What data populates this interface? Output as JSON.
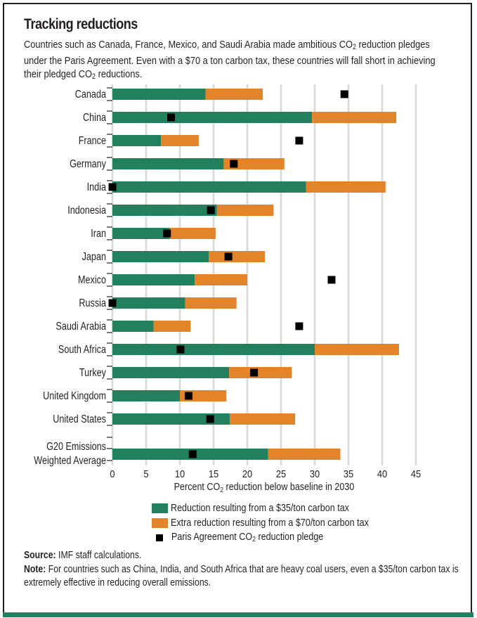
{
  "header": {
    "title": "Tracking reductions",
    "subtitle_parts": [
      "Countries such as Canada, France, Mexico, and Saudi Arabia made ambitious CO",
      "2",
      " reduction pledges under the Paris Agreement. Even with a $70 a ton carbon tax, these countries will fall short in achieving their pledged CO",
      "2",
      " reductions."
    ]
  },
  "colors": {
    "tax35": "#23805f",
    "tax70_extra": "#e3832a",
    "pledge": "#000000",
    "grid": "#d9d9d9",
    "frame_accent": "#23805f"
  },
  "chart_data": {
    "type": "bar",
    "orientation": "horizontal",
    "stacked": true,
    "title": "Tracking reductions",
    "xlabel": "Percent CO2 reduction below baseline  in 2030",
    "xlabel_parts": [
      "Percent CO",
      "2",
      " reduction below baseline  in 2030"
    ],
    "ylabel": "",
    "xlim": [
      0,
      45
    ],
    "xticks": [
      0,
      5,
      10,
      15,
      20,
      25,
      30,
      35,
      40,
      45
    ],
    "grid": "vertical",
    "legend_position": "bottom",
    "categories": [
      "Canada",
      "China",
      "France",
      "Germany",
      "India",
      "Indonesia",
      "Iran",
      "Japan",
      "Mexico",
      "Russia",
      "Saudi Arabia",
      "South Africa",
      "Turkey",
      "United Kingdom",
      "United States",
      "G20 Emissions Weighted Average"
    ],
    "category_label_lines": [
      [
        "Canada"
      ],
      [
        "China"
      ],
      [
        "France"
      ],
      [
        "Germany"
      ],
      [
        "India"
      ],
      [
        "Indonesia"
      ],
      [
        "Iran"
      ],
      [
        "Japan"
      ],
      [
        "Mexico"
      ],
      [
        "Russia"
      ],
      [
        "Saudi Arabia"
      ],
      [
        "South Africa"
      ],
      [
        "Turkey"
      ],
      [
        "United Kingdom"
      ],
      [
        "United States"
      ],
      [
        "G20 Emissions",
        "Weighted Average"
      ]
    ],
    "series": [
      {
        "name": "Reduction resulting from a $35/ton carbon tax",
        "kind": "bar",
        "values": [
          13.8,
          29.6,
          7.2,
          16.5,
          28.7,
          15.5,
          8.5,
          14.3,
          12.2,
          10.8,
          6.1,
          30.0,
          17.3,
          10.0,
          17.4,
          23.1
        ]
      },
      {
        "name": "Extra reduction resulting from a $70/ton carbon tax",
        "kind": "bar",
        "values": [
          8.5,
          12.5,
          5.6,
          9.0,
          11.8,
          8.4,
          6.8,
          8.3,
          7.8,
          7.6,
          5.5,
          12.5,
          9.3,
          6.9,
          9.7,
          10.7
        ]
      },
      {
        "name": "Paris Agreement CO2 reduction pledge",
        "kind": "marker",
        "values": [
          34.4,
          8.7,
          27.7,
          18.0,
          0.0,
          14.6,
          8.1,
          17.2,
          32.5,
          0.0,
          27.7,
          10.1,
          21.0,
          11.3,
          14.5,
          11.9
        ]
      }
    ],
    "legend": [
      {
        "label_parts": [
          "Reduction resulting from a $35/ton carbon tax"
        ],
        "swatch": "tax35"
      },
      {
        "label_parts": [
          "Extra reduction resulting from a $70/ton carbon tax"
        ],
        "swatch": "tax70_extra"
      },
      {
        "label_parts": [
          "Paris Agreement CO",
          "2",
          " reduction pledge"
        ],
        "swatch": "pledge"
      }
    ]
  },
  "footer": {
    "source_label": "Source:",
    "source_text": " IMF staff calculations.",
    "note_label": "Note:",
    "note_text": " For countries such as China, India, and South Africa that are heavy coal users, even a $35/ton carbon tax is extremely effective in reducing overall emissions."
  }
}
